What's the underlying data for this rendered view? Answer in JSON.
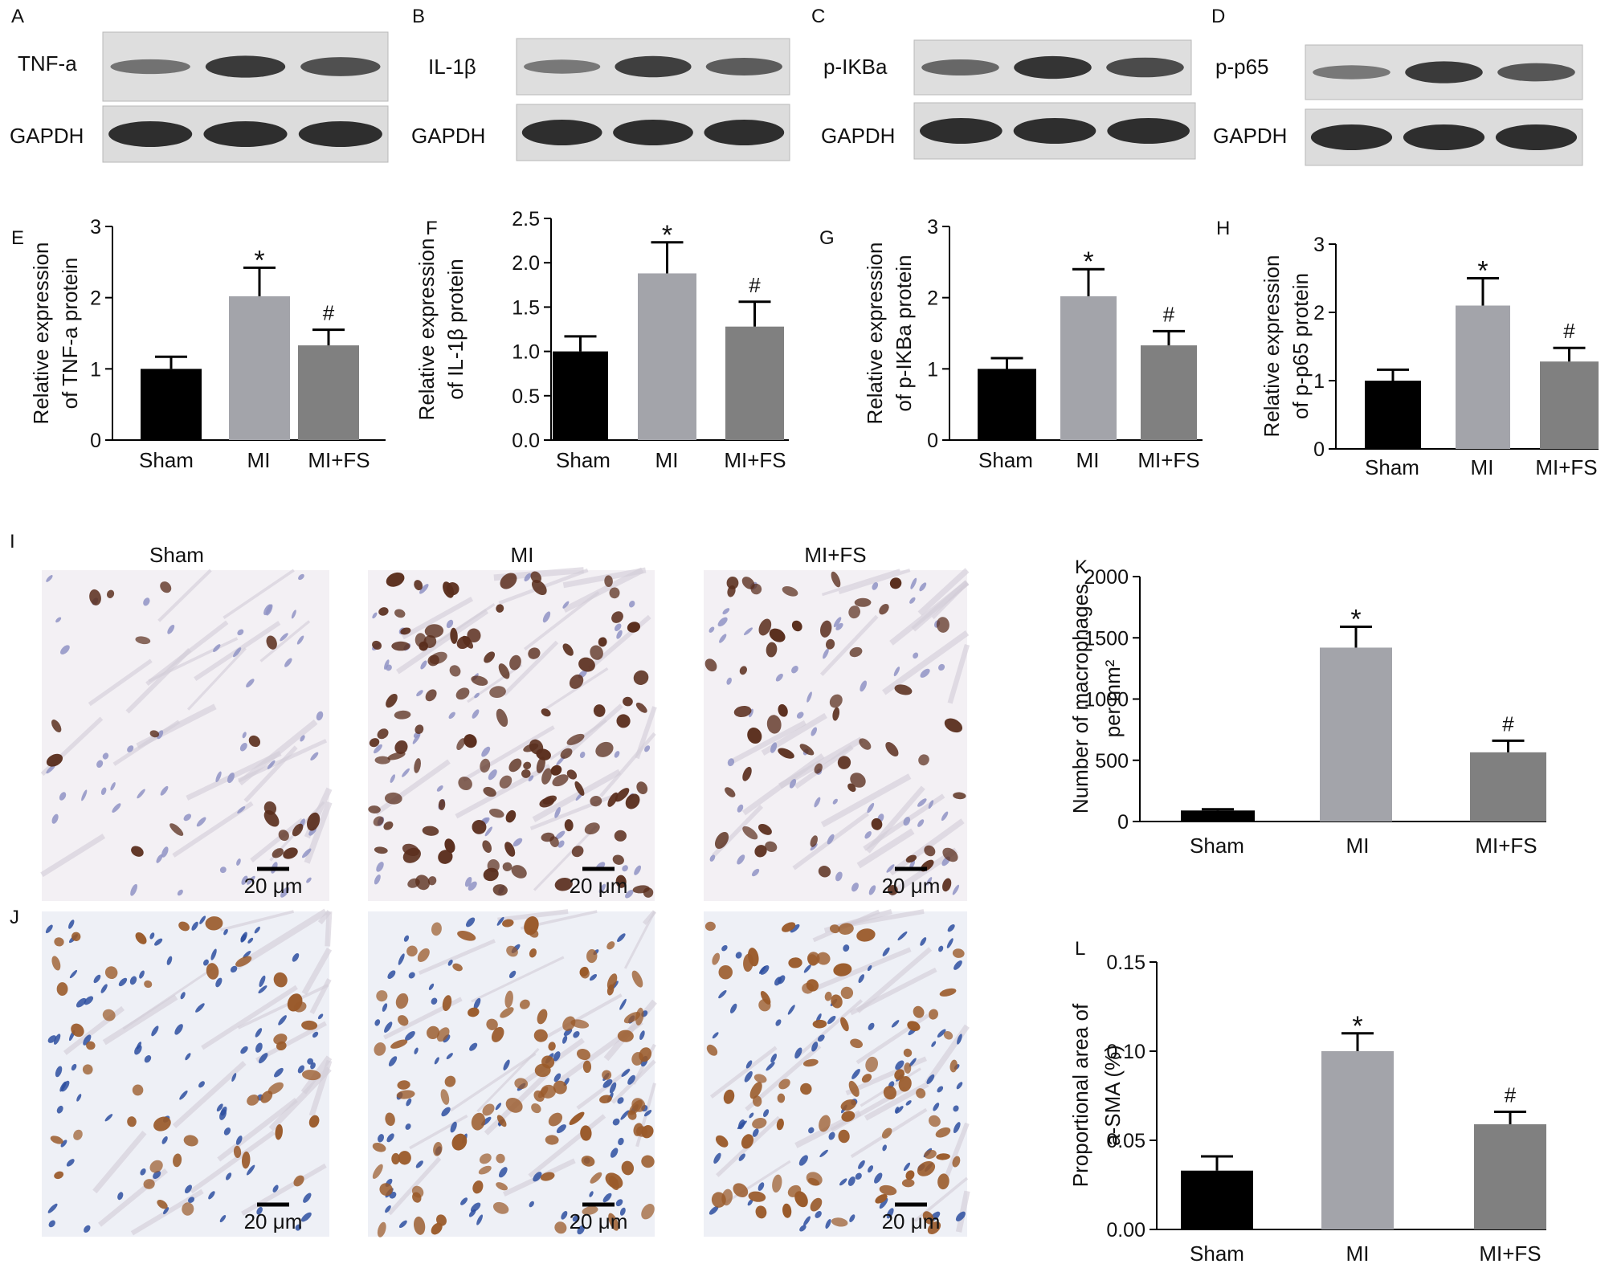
{
  "panel_letters": [
    "A",
    "B",
    "C",
    "D",
    "E",
    "F",
    "G",
    "H",
    "I",
    "J",
    "K",
    "L"
  ],
  "blots": [
    {
      "letter": "A",
      "target": "TNF-a",
      "control": "GAPDH",
      "band_intensity": [
        0.35,
        0.85,
        0.65
      ]
    },
    {
      "letter": "B",
      "target": "IL-1β",
      "control": "GAPDH",
      "band_intensity": [
        0.3,
        0.8,
        0.55
      ]
    },
    {
      "letter": "C",
      "target": "p-IKBa",
      "control": "GAPDH",
      "band_intensity": [
        0.45,
        0.9,
        0.7
      ]
    },
    {
      "letter": "D",
      "target": "p-p65",
      "control": "GAPDH",
      "band_intensity": [
        0.3,
        0.85,
        0.6
      ]
    }
  ],
  "histology": {
    "groups": [
      "Sham",
      "MI",
      "MI+FS"
    ],
    "scale_bar": "20 μm",
    "rows": [
      {
        "letter": "I",
        "stain": "macrophage",
        "tint": "#f3f0f4",
        "dot_color": "#5a2e1d",
        "cell_density": [
          0.15,
          1.0,
          0.45
        ]
      },
      {
        "letter": "J",
        "stain": "a-SMA",
        "tint": "#eef0f6",
        "dot_color": "#9a5a2a",
        "cell_density": [
          0.35,
          0.85,
          0.7
        ]
      }
    ]
  },
  "chart_data": [
    {
      "type": "bar",
      "letter": "E",
      "categories": [
        "Sham",
        "MI",
        "MI+FS"
      ],
      "values": [
        1.0,
        2.02,
        1.33
      ],
      "errors": [
        0.17,
        0.4,
        0.22
      ],
      "ylabel": [
        "Relative expression",
        "of TNF-a protein"
      ],
      "ylim": [
        0,
        3
      ],
      "yticks": [
        "0",
        "1",
        "2",
        "3"
      ],
      "marks": [
        "",
        "*",
        "#"
      ]
    },
    {
      "type": "bar",
      "letter": "F",
      "categories": [
        "Sham",
        "MI",
        "MI+FS"
      ],
      "values": [
        1.0,
        1.88,
        1.28
      ],
      "errors": [
        0.17,
        0.35,
        0.28
      ],
      "ylabel": [
        "Relative expression",
        "of IL-1β protein"
      ],
      "ylim": [
        0,
        2.5
      ],
      "yticks": [
        "0.0",
        "0.5",
        "1.0",
        "1.5",
        "2.0",
        "2.5"
      ],
      "marks": [
        "",
        "*",
        "#"
      ]
    },
    {
      "type": "bar",
      "letter": "G",
      "categories": [
        "Sham",
        "MI",
        "MI+FS"
      ],
      "values": [
        1.0,
        2.02,
        1.33
      ],
      "errors": [
        0.15,
        0.38,
        0.2
      ],
      "ylabel": [
        "Relative expression",
        "of p-IKBa protein"
      ],
      "ylim": [
        0,
        3
      ],
      "yticks": [
        "0",
        "1",
        "2",
        "3"
      ],
      "marks": [
        "",
        "*",
        "#"
      ]
    },
    {
      "type": "bar",
      "letter": "H",
      "categories": [
        "Sham",
        "MI",
        "MI+FS"
      ],
      "values": [
        1.0,
        2.1,
        1.28
      ],
      "errors": [
        0.16,
        0.4,
        0.2
      ],
      "ylabel": [
        "Relative expression",
        "of p-p65 protein"
      ],
      "ylim": [
        0,
        3
      ],
      "yticks": [
        "0",
        "1",
        "2",
        "3"
      ],
      "marks": [
        "",
        "*",
        "#"
      ]
    },
    {
      "type": "bar",
      "letter": "K",
      "categories": [
        "Sham",
        "MI",
        "MI+FS"
      ],
      "values": [
        90,
        1420,
        565
      ],
      "errors": [
        10,
        170,
        95
      ],
      "ylabel": [
        "Number of macrophages",
        "per mm²"
      ],
      "ylim": [
        0,
        2000
      ],
      "yticks": [
        "0",
        "500",
        "1000",
        "1500",
        "2000"
      ],
      "marks": [
        "",
        "*",
        "#"
      ]
    },
    {
      "type": "bar",
      "letter": "L",
      "categories": [
        "Sham",
        "MI",
        "MI+FS"
      ],
      "values": [
        0.033,
        0.1,
        0.059
      ],
      "errors": [
        0.008,
        0.01,
        0.007
      ],
      "ylabel": [
        "Proportional area of",
        "a-SMA (%)"
      ],
      "ylim": [
        0,
        0.15
      ],
      "yticks": [
        "0.00",
        "0.05",
        "0.10",
        "0.15"
      ],
      "marks": [
        "",
        "*",
        "#"
      ]
    }
  ],
  "colors": {
    "Sham": "#000000",
    "MI": "#a3a4aa",
    "MI+FS": "#808080",
    "axis": "#000000"
  }
}
